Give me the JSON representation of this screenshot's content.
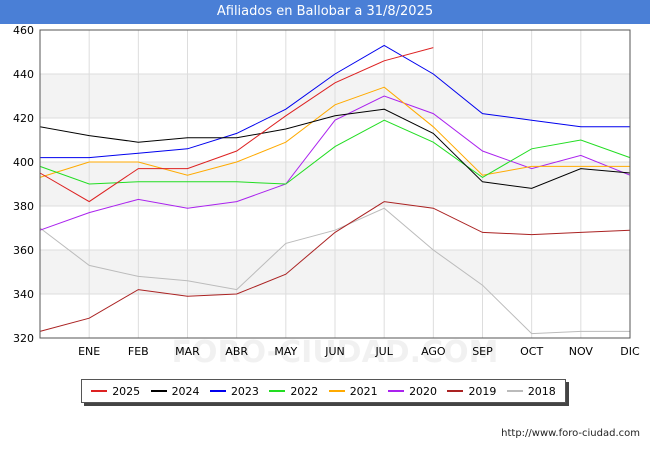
{
  "title": "Afiliados en Ballobar a 31/8/2025",
  "footer": "http://www.foro-ciudad.com",
  "watermark": "FORO-CIUDAD.COM",
  "chart_data": {
    "type": "line",
    "title": "Afiliados en Ballobar a 31/8/2025",
    "xlabel": "",
    "ylabel": "",
    "ylim": [
      320,
      460
    ],
    "yticks": [
      320,
      340,
      360,
      380,
      400,
      420,
      440,
      460
    ],
    "categories": [
      "",
      "ENE",
      "FEB",
      "MAR",
      "ABR",
      "MAY",
      "JUN",
      "JUL",
      "AGO",
      "SEP",
      "OCT",
      "NOV",
      "DIC"
    ],
    "tick_labels": [
      "ENE",
      "FEB",
      "MAR",
      "ABR",
      "MAY",
      "JUN",
      "JUL",
      "AGO",
      "SEP",
      "OCT",
      "NOV",
      "DIC"
    ],
    "grid": true,
    "legend_position": "bottom",
    "series": [
      {
        "name": "2025",
        "color": "#dd2222",
        "values": [
          395,
          382,
          397,
          397,
          405,
          421,
          436,
          446,
          452,
          null,
          null,
          null,
          null
        ]
      },
      {
        "name": "2024",
        "color": "#000000",
        "values": [
          416,
          412,
          409,
          411,
          411,
          415,
          421,
          424,
          413,
          391,
          388,
          397,
          395
        ]
      },
      {
        "name": "2023",
        "color": "#0000ee",
        "values": [
          402,
          402,
          404,
          406,
          413,
          424,
          440,
          453,
          440,
          422,
          419,
          416,
          416
        ]
      },
      {
        "name": "2022",
        "color": "#22dd22",
        "values": [
          398,
          390,
          391,
          391,
          391,
          390,
          407,
          419,
          409,
          393,
          406,
          410,
          402
        ]
      },
      {
        "name": "2021",
        "color": "#ffaa00",
        "values": [
          393,
          400,
          400,
          394,
          400,
          409,
          426,
          434,
          416,
          394,
          398,
          398,
          398
        ]
      },
      {
        "name": "2020",
        "color": "#aa22ee",
        "values": [
          369,
          377,
          383,
          379,
          382,
          390,
          419,
          430,
          422,
          405,
          397,
          403,
          394
        ]
      },
      {
        "name": "2019",
        "color": "#aa2222",
        "values": [
          323,
          329,
          342,
          339,
          340,
          349,
          368,
          382,
          379,
          368,
          367,
          368,
          369
        ]
      },
      {
        "name": "2018",
        "color": "#bbbbbb",
        "values": [
          370,
          353,
          348,
          346,
          342,
          363,
          369,
          379,
          360,
          344,
          322,
          323,
          323
        ]
      }
    ]
  }
}
